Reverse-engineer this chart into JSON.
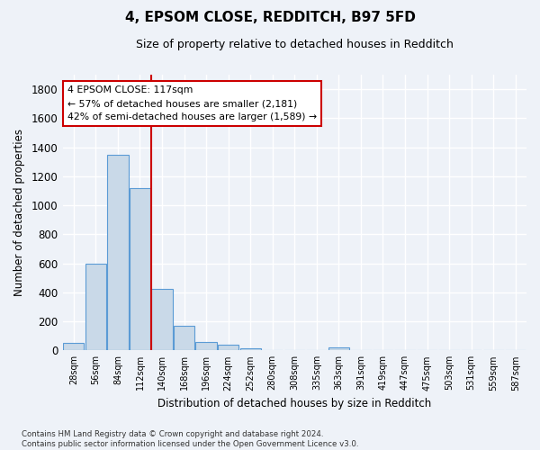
{
  "title": "4, EPSOM CLOSE, REDDITCH, B97 5FD",
  "subtitle": "Size of property relative to detached houses in Redditch",
  "xlabel": "Distribution of detached houses by size in Redditch",
  "ylabel": "Number of detached properties",
  "bar_color": "#c9d9e8",
  "bar_edge_color": "#5b9bd5",
  "categories": [
    "28sqm",
    "56sqm",
    "84sqm",
    "112sqm",
    "140sqm",
    "168sqm",
    "196sqm",
    "224sqm",
    "252sqm",
    "280sqm",
    "308sqm",
    "335sqm",
    "363sqm",
    "391sqm",
    "419sqm",
    "447sqm",
    "475sqm",
    "503sqm",
    "531sqm",
    "559sqm",
    "587sqm"
  ],
  "values": [
    50,
    595,
    1350,
    1120,
    425,
    170,
    60,
    40,
    15,
    0,
    0,
    0,
    20,
    0,
    0,
    0,
    0,
    0,
    0,
    0,
    0
  ],
  "ylim": [
    0,
    1900
  ],
  "yticks": [
    0,
    200,
    400,
    600,
    800,
    1000,
    1200,
    1400,
    1600,
    1800
  ],
  "vline_x": 3.5,
  "vline_color": "#cc0000",
  "annotation_line1": "4 EPSOM CLOSE: 117sqm",
  "annotation_line2": "← 57% of detached houses are smaller (2,181)",
  "annotation_line3": "42% of semi-detached houses are larger (1,589) →",
  "annotation_box_color": "#ffffff",
  "annotation_box_edge": "#cc0000",
  "footer": "Contains HM Land Registry data © Crown copyright and database right 2024.\nContains public sector information licensed under the Open Government Licence v3.0.",
  "background_color": "#eef2f8",
  "grid_color": "#ffffff",
  "figsize": [
    6.0,
    5.0
  ],
  "dpi": 100
}
